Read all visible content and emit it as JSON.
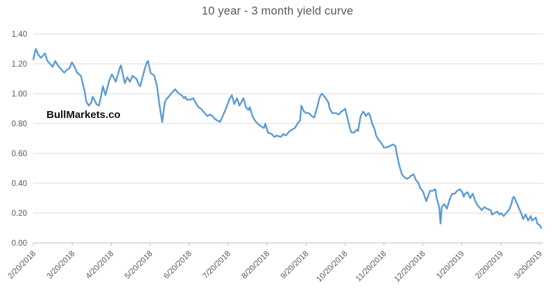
{
  "colors": {
    "line": "#5B9BD5",
    "grid": "#D9D9D9",
    "axis": "#BFBFBF",
    "text": "#595959",
    "watermark": "#111111",
    "background": "#FFFFFF",
    "title": "#595959"
  },
  "chart_data": {
    "type": "line",
    "title": "10 year - 3 month yield curve",
    "watermark": "BullMarkets.co",
    "xlabel": "",
    "ylabel": "",
    "legend": "none",
    "grid": true,
    "ylim": [
      0.0,
      1.4
    ],
    "y_tick_step": 0.2,
    "y_tick_labels": [
      "0.00",
      "0.20",
      "0.40",
      "0.60",
      "0.80",
      "1.00",
      "1.20",
      "1.40"
    ],
    "x_range": [
      "2018-02-20",
      "2019-03-20"
    ],
    "x_tick_labels": [
      "2/20/2018",
      "3/20/2018",
      "4/20/2018",
      "5/20/2018",
      "6/20/2018",
      "7/20/2018",
      "8/20/2018",
      "9/20/2018",
      "10/20/2018",
      "11/20/2018",
      "12/20/2018",
      "1/20/2019",
      "2/20/2019",
      "3/20/2019"
    ],
    "series": [
      {
        "points": [
          [
            "2018-02-20",
            1.23
          ],
          [
            "2018-02-22",
            1.3
          ],
          [
            "2018-02-24",
            1.26
          ],
          [
            "2018-02-26",
            1.24
          ],
          [
            "2018-03-01",
            1.27
          ],
          [
            "2018-03-03",
            1.22
          ],
          [
            "2018-03-05",
            1.2
          ],
          [
            "2018-03-07",
            1.18
          ],
          [
            "2018-03-09",
            1.22
          ],
          [
            "2018-03-11",
            1.19
          ],
          [
            "2018-03-14",
            1.16
          ],
          [
            "2018-03-16",
            1.14
          ],
          [
            "2018-03-18",
            1.16
          ],
          [
            "2018-03-20",
            1.17
          ],
          [
            "2018-03-22",
            1.21
          ],
          [
            "2018-03-24",
            1.18
          ],
          [
            "2018-03-26",
            1.14
          ],
          [
            "2018-03-29",
            1.12
          ],
          [
            "2018-03-30",
            1.08
          ],
          [
            "2018-04-01",
            1.01
          ],
          [
            "2018-04-02",
            0.95
          ],
          [
            "2018-04-04",
            0.92
          ],
          [
            "2018-04-06",
            0.94
          ],
          [
            "2018-04-07",
            0.98
          ],
          [
            "2018-04-09",
            0.95
          ],
          [
            "2018-04-10",
            0.93
          ],
          [
            "2018-04-12",
            0.92
          ],
          [
            "2018-04-14",
            1.0
          ],
          [
            "2018-04-15",
            1.05
          ],
          [
            "2018-04-17",
            0.99
          ],
          [
            "2018-04-20",
            1.09
          ],
          [
            "2018-04-22",
            1.13
          ],
          [
            "2018-04-25",
            1.08
          ],
          [
            "2018-04-28",
            1.17
          ],
          [
            "2018-04-29",
            1.19
          ],
          [
            "2018-05-02",
            1.07
          ],
          [
            "2018-05-04",
            1.11
          ],
          [
            "2018-05-06",
            1.08
          ],
          [
            "2018-05-08",
            1.12
          ],
          [
            "2018-05-11",
            1.1
          ],
          [
            "2018-05-13",
            1.06
          ],
          [
            "2018-05-14",
            1.05
          ],
          [
            "2018-05-17",
            1.15
          ],
          [
            "2018-05-19",
            1.21
          ],
          [
            "2018-05-20",
            1.22
          ],
          [
            "2018-05-22",
            1.14
          ],
          [
            "2018-05-25",
            1.12
          ],
          [
            "2018-05-27",
            1.05
          ],
          [
            "2018-05-29",
            0.92
          ],
          [
            "2018-05-31",
            0.81
          ],
          [
            "2018-06-02",
            0.94
          ],
          [
            "2018-06-03",
            0.96
          ],
          [
            "2018-06-05",
            0.98
          ],
          [
            "2018-06-08",
            1.01
          ],
          [
            "2018-06-10",
            1.03
          ],
          [
            "2018-06-11",
            1.02
          ],
          [
            "2018-06-13",
            1.0
          ],
          [
            "2018-06-15",
            0.99
          ],
          [
            "2018-06-17",
            0.97
          ],
          [
            "2018-06-18",
            0.98
          ],
          [
            "2018-06-19",
            0.96
          ],
          [
            "2018-06-22",
            0.96
          ],
          [
            "2018-06-24",
            0.97
          ],
          [
            "2018-06-26",
            0.94
          ],
          [
            "2018-06-28",
            0.91
          ],
          [
            "2018-06-30",
            0.9
          ],
          [
            "2018-07-02",
            0.88
          ],
          [
            "2018-07-05",
            0.85
          ],
          [
            "2018-07-07",
            0.86
          ],
          [
            "2018-07-09",
            0.85
          ],
          [
            "2018-07-11",
            0.83
          ],
          [
            "2018-07-13",
            0.82
          ],
          [
            "2018-07-15",
            0.81
          ],
          [
            "2018-07-17",
            0.85
          ],
          [
            "2018-07-20",
            0.91
          ],
          [
            "2018-07-22",
            0.96
          ],
          [
            "2018-07-24",
            0.99
          ],
          [
            "2018-07-26",
            0.93
          ],
          [
            "2018-07-28",
            0.97
          ],
          [
            "2018-07-30",
            0.92
          ],
          [
            "2018-08-02",
            0.97
          ],
          [
            "2018-08-04",
            0.91
          ],
          [
            "2018-08-06",
            0.89
          ],
          [
            "2018-08-07",
            0.91
          ],
          [
            "2018-08-09",
            0.85
          ],
          [
            "2018-08-11",
            0.82
          ],
          [
            "2018-08-13",
            0.8
          ],
          [
            "2018-08-16",
            0.78
          ],
          [
            "2018-08-18",
            0.77
          ],
          [
            "2018-08-19",
            0.8
          ],
          [
            "2018-08-21",
            0.74
          ],
          [
            "2018-08-24",
            0.73
          ],
          [
            "2018-08-26",
            0.71
          ],
          [
            "2018-08-28",
            0.72
          ],
          [
            "2018-08-31",
            0.71
          ],
          [
            "2018-09-02",
            0.73
          ],
          [
            "2018-09-04",
            0.72
          ],
          [
            "2018-09-07",
            0.75
          ],
          [
            "2018-09-09",
            0.76
          ],
          [
            "2018-09-11",
            0.77
          ],
          [
            "2018-09-13",
            0.8
          ],
          [
            "2018-09-15",
            0.82
          ],
          [
            "2018-09-16",
            0.92
          ],
          [
            "2018-09-18",
            0.88
          ],
          [
            "2018-09-20",
            0.87
          ],
          [
            "2018-09-22",
            0.87
          ],
          [
            "2018-09-24",
            0.85
          ],
          [
            "2018-09-26",
            0.84
          ],
          [
            "2018-09-28",
            0.9
          ],
          [
            "2018-09-30",
            0.97
          ],
          [
            "2018-10-01",
            0.99
          ],
          [
            "2018-10-02",
            1.0
          ],
          [
            "2018-10-05",
            0.97
          ],
          [
            "2018-10-07",
            0.94
          ],
          [
            "2018-10-08",
            0.9
          ],
          [
            "2018-10-10",
            0.87
          ],
          [
            "2018-10-13",
            0.87
          ],
          [
            "2018-10-15",
            0.86
          ],
          [
            "2018-10-17",
            0.88
          ],
          [
            "2018-10-19",
            0.89
          ],
          [
            "2018-10-20",
            0.9
          ],
          [
            "2018-10-22",
            0.83
          ],
          [
            "2018-10-24",
            0.76
          ],
          [
            "2018-10-25",
            0.74
          ],
          [
            "2018-10-27",
            0.74
          ],
          [
            "2018-10-29",
            0.76
          ],
          [
            "2018-10-30",
            0.75
          ],
          [
            "2018-11-01",
            0.85
          ],
          [
            "2018-11-03",
            0.88
          ],
          [
            "2018-11-04",
            0.87
          ],
          [
            "2018-11-05",
            0.85
          ],
          [
            "2018-11-07",
            0.87
          ],
          [
            "2018-11-08",
            0.86
          ],
          [
            "2018-11-10",
            0.8
          ],
          [
            "2018-11-12",
            0.76
          ],
          [
            "2018-11-13",
            0.72
          ],
          [
            "2018-11-15",
            0.69
          ],
          [
            "2018-11-17",
            0.67
          ],
          [
            "2018-11-19",
            0.64
          ],
          [
            "2018-11-21",
            0.64
          ],
          [
            "2018-11-24",
            0.65
          ],
          [
            "2018-11-26",
            0.66
          ],
          [
            "2018-11-28",
            0.65
          ],
          [
            "2018-11-29",
            0.6
          ],
          [
            "2018-12-01",
            0.52
          ],
          [
            "2018-12-03",
            0.46
          ],
          [
            "2018-12-05",
            0.44
          ],
          [
            "2018-12-07",
            0.43
          ],
          [
            "2018-12-09",
            0.44
          ],
          [
            "2018-12-10",
            0.45
          ],
          [
            "2018-12-12",
            0.46
          ],
          [
            "2018-12-14",
            0.42
          ],
          [
            "2018-12-16",
            0.4
          ],
          [
            "2018-12-17",
            0.37
          ],
          [
            "2018-12-19",
            0.35
          ],
          [
            "2018-12-20",
            0.33
          ],
          [
            "2018-12-22",
            0.28
          ],
          [
            "2018-12-24",
            0.33
          ],
          [
            "2018-12-25",
            0.35
          ],
          [
            "2018-12-27",
            0.35
          ],
          [
            "2018-12-29",
            0.36
          ],
          [
            "2018-12-30",
            0.3
          ],
          [
            "2019-01-01",
            0.24
          ],
          [
            "2019-01-02",
            0.13
          ],
          [
            "2019-01-03",
            0.24
          ],
          [
            "2019-01-05",
            0.26
          ],
          [
            "2019-01-07",
            0.23
          ],
          [
            "2019-01-09",
            0.29
          ],
          [
            "2019-01-11",
            0.33
          ],
          [
            "2019-01-13",
            0.33
          ],
          [
            "2019-01-15",
            0.35
          ],
          [
            "2019-01-17",
            0.36
          ],
          [
            "2019-01-19",
            0.34
          ],
          [
            "2019-01-20",
            0.31
          ],
          [
            "2019-01-21",
            0.33
          ],
          [
            "2019-01-23",
            0.34
          ],
          [
            "2019-01-25",
            0.3
          ],
          [
            "2019-01-27",
            0.33
          ],
          [
            "2019-01-29",
            0.28
          ],
          [
            "2019-01-31",
            0.25
          ],
          [
            "2019-02-02",
            0.23
          ],
          [
            "2019-02-03",
            0.22
          ],
          [
            "2019-02-05",
            0.24
          ],
          [
            "2019-02-07",
            0.23
          ],
          [
            "2019-02-10",
            0.22
          ],
          [
            "2019-02-11",
            0.19
          ],
          [
            "2019-02-13",
            0.2
          ],
          [
            "2019-02-15",
            0.21
          ],
          [
            "2019-02-17",
            0.19
          ],
          [
            "2019-02-18",
            0.2
          ],
          [
            "2019-02-20",
            0.18
          ],
          [
            "2019-02-22",
            0.2
          ],
          [
            "2019-02-24",
            0.22
          ],
          [
            "2019-02-26",
            0.26
          ],
          [
            "2019-02-27",
            0.3
          ],
          [
            "2019-02-28",
            0.31
          ],
          [
            "2019-03-02",
            0.27
          ],
          [
            "2019-03-04",
            0.23
          ],
          [
            "2019-03-06",
            0.19
          ],
          [
            "2019-03-07",
            0.16
          ],
          [
            "2019-03-09",
            0.19
          ],
          [
            "2019-03-11",
            0.15
          ],
          [
            "2019-03-13",
            0.18
          ],
          [
            "2019-03-14",
            0.15
          ],
          [
            "2019-03-17",
            0.17
          ],
          [
            "2019-03-18",
            0.13
          ],
          [
            "2019-03-20",
            0.12
          ],
          [
            "2019-03-21",
            0.1
          ]
        ]
      }
    ]
  }
}
